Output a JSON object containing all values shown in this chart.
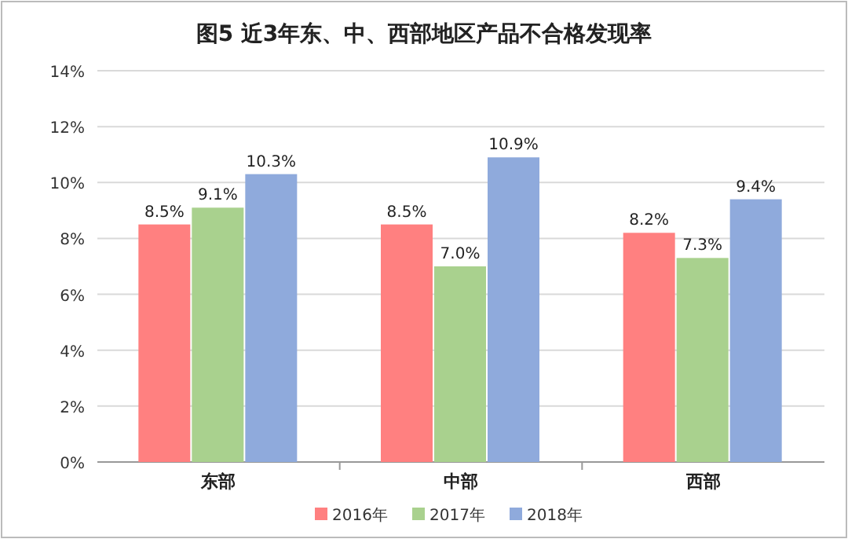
{
  "chart_data": {
    "type": "bar",
    "title": "图5 近3年东、中、西部地区产品不合格发现率",
    "categories": [
      "东部",
      "中部",
      "西部"
    ],
    "series": [
      {
        "name": "2016年",
        "color": "#ff8080",
        "values": [
          8.5,
          8.5,
          8.2
        ],
        "value_labels": [
          "8.5%",
          "8.5%",
          "8.2%"
        ]
      },
      {
        "name": "2017年",
        "color": "#a9d18e",
        "values": [
          9.1,
          7.0,
          7.3
        ],
        "value_labels": [
          "9.1%",
          "7.0%",
          "7.3%"
        ]
      },
      {
        "name": "2018年",
        "color": "#8faadc",
        "values": [
          10.3,
          10.9,
          9.4
        ],
        "value_labels": [
          "10.3%",
          "10.9%",
          "9.4%"
        ]
      }
    ],
    "ylim": [
      0,
      14
    ],
    "yticks": [
      {
        "value": 0,
        "label": "0%"
      },
      {
        "value": 2,
        "label": "2%"
      },
      {
        "value": 4,
        "label": "4%"
      },
      {
        "value": 6,
        "label": "6%"
      },
      {
        "value": 8,
        "label": "8%"
      },
      {
        "value": 10,
        "label": "10%"
      },
      {
        "value": 12,
        "label": "12%"
      },
      {
        "value": 14,
        "label": "14%"
      }
    ],
    "grid": "y",
    "legend": "bottom"
  }
}
